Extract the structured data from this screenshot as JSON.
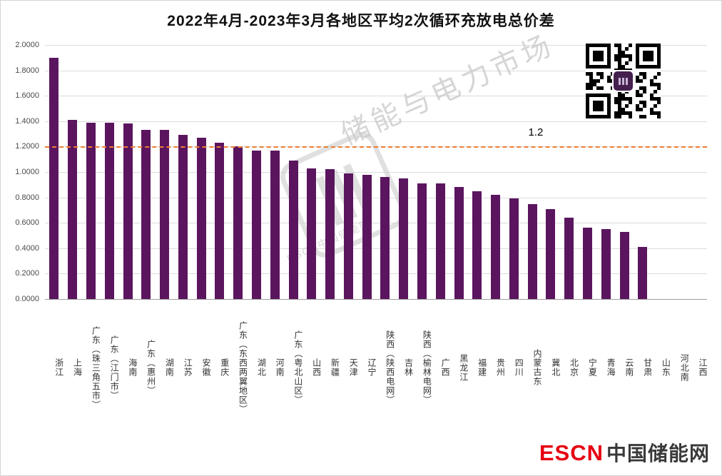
{
  "chart_data": {
    "type": "bar",
    "title": "2022年4月-2023年3月各地区平均2次循环充放电总价差",
    "categories": [
      "浙江",
      "上海",
      "广东（珠三角五市）",
      "广东（江门市）",
      "海南",
      "广东（惠州）",
      "湖南",
      "江苏",
      "安徽",
      "重庆",
      "广东（东西两翼地区）",
      "湖北",
      "河南",
      "广东（粤北山区）",
      "山西",
      "新疆",
      "天津",
      "辽宁",
      "陕西（陕西电网）",
      "吉林",
      "陕西（榆林电网）",
      "广西",
      "黑龙江",
      "福建",
      "贵州",
      "四川",
      "内蒙古东",
      "冀北",
      "北京",
      "宁夏",
      "青海",
      "云南",
      "甘肃",
      "山东",
      "河北南",
      "江西"
    ],
    "values": [
      1.9,
      1.41,
      1.39,
      1.39,
      1.38,
      1.33,
      1.33,
      1.29,
      1.27,
      1.23,
      1.2,
      1.17,
      1.17,
      1.09,
      1.03,
      1.02,
      0.99,
      0.98,
      0.96,
      0.95,
      0.91,
      0.91,
      0.88,
      0.85,
      0.82,
      0.79,
      0.75,
      0.71,
      0.64,
      0.56,
      0.55,
      0.53,
      0.41,
      0,
      0,
      0
    ],
    "xlabel": "",
    "ylabel": "",
    "ylim": [
      0,
      2.0
    ],
    "y_ticks": [
      "0.0000",
      "0.2000",
      "0.4000",
      "0.6000",
      "0.8000",
      "1.0000",
      "1.2000",
      "1.4000",
      "1.6000",
      "1.8000",
      "2.0000"
    ],
    "grid": true,
    "legend_position": "none",
    "bar_color": "#5B155F",
    "reference_line": {
      "value": 1.2,
      "label": "1.2",
      "color": "#ED7D31",
      "style": "dashed"
    }
  },
  "watermark": {
    "text": "储能与电力市场",
    "caption": "ESCN中国储能网"
  },
  "branding": {
    "logo_text": "ESCN",
    "site_name": "中国储能网"
  }
}
